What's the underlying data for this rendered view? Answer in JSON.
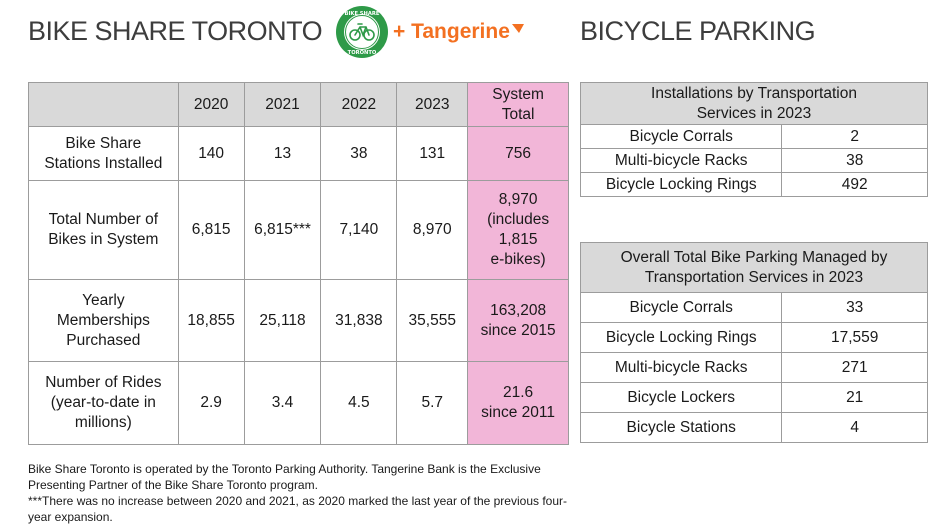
{
  "left_title": "BIKE SHARE TORONTO",
  "right_title": "BICYCLE PARKING",
  "logo": {
    "ring_text": "BIKE SHARE TORONTO",
    "plus_brand": "+ Tangerine"
  },
  "main_table": {
    "headers": [
      "",
      "2020",
      "2021",
      "2022",
      "2023",
      "System\nTotal"
    ],
    "rows": [
      {
        "label": "Bike Share\nStations Installed",
        "cells": [
          "140",
          "13",
          "38",
          "131"
        ],
        "total": "756"
      },
      {
        "label": "Total Number of\nBikes in System",
        "cells": [
          "6,815",
          "6,815***",
          "7,140",
          "8,970"
        ],
        "total": "8,970\n(includes\n1,815\ne-bikes)"
      },
      {
        "label": "Yearly\nMemberships\nPurchased",
        "cells": [
          "18,855",
          "25,118",
          "31,838",
          "35,555"
        ],
        "total": "163,208\nsince 2015"
      },
      {
        "label": "Number of Rides\n(year-to-date in\nmillions)",
        "cells": [
          "2.9",
          "3.4",
          "4.5",
          "5.7"
        ],
        "total": "21.6\nsince 2011"
      }
    ]
  },
  "installations_table": {
    "title": "Installations by Transportation\nServices in 2023",
    "rows": [
      {
        "label": "Bicycle Corrals",
        "value": "2"
      },
      {
        "label": "Multi-bicycle Racks",
        "value": "38"
      },
      {
        "label": "Bicycle Locking Rings",
        "value": "492"
      }
    ]
  },
  "overall_table": {
    "title": "Overall Total Bike Parking Managed by\nTransportation Services in 2023",
    "rows": [
      {
        "label": "Bicycle Corrals",
        "value": "33"
      },
      {
        "label": "Bicycle Locking Rings",
        "value": "17,559"
      },
      {
        "label": "Multi-bicycle Racks",
        "value": "271"
      },
      {
        "label": "Bicycle Lockers",
        "value": "21"
      },
      {
        "label": "Bicycle Stations",
        "value": "4"
      }
    ]
  },
  "footnotes": [
    "Bike Share Toronto is operated by the Toronto Parking Authority. Tangerine Bank is the Exclusive Presenting Partner of the Bike Share Toronto program.",
    "***There was no increase between 2020 and 2021, as 2020 marked the last year of the previous four-year expansion."
  ],
  "colors": {
    "header_gray": "#d9d9d9",
    "pink": "#f2b6d8",
    "logo_green": "#2e9a48",
    "tangerine_orange": "#f37021"
  }
}
